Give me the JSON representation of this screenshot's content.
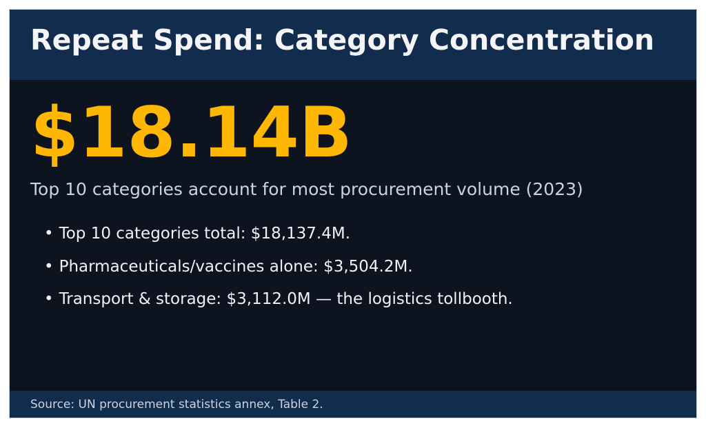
{
  "header": {
    "title": "Repeat Spend: Category Concentration"
  },
  "main": {
    "headline_value": "$18.14B",
    "subtitle": "Top 10 categories account for most procurement volume (2023)",
    "bullet_char": "•",
    "bullets": [
      "Top 10 categories total: $18,137.4M.",
      "Pharmaceuticals/vaccines alone: $3,504.2M.",
      "Transport & storage: $3,112.0M — the logistics tollbooth."
    ]
  },
  "footer": {
    "source": "Source: UN procurement statistics annex, Table 2."
  },
  "colors": {
    "header_bg": "#122c4d",
    "body_bg": "#0d131f",
    "accent": "#ffb703"
  }
}
